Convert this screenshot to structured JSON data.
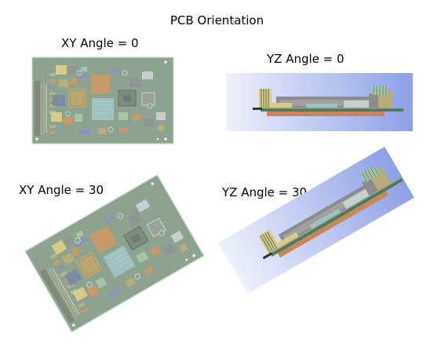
{
  "figure": {
    "title": "PCB Orientation"
  },
  "panels": [
    {
      "id": "xy0",
      "label": "XY Angle = 0"
    },
    {
      "id": "yz0",
      "label": "YZ Angle = 0"
    },
    {
      "id": "xy30",
      "label": "XY Angle = 30"
    },
    {
      "id": "yz30",
      "label": "YZ Angle = 30"
    }
  ],
  "colors": {
    "board": "#8ea38f",
    "board_edge": "#c9d7cc",
    "pad_tan": "#b8ad7a",
    "pad_orange": "#c79a6a",
    "pad_blue": "#8e93b8",
    "pad_gray": "#8f9494",
    "pad_light": "#c8d0cf",
    "pad_teal": "#9fc2c0",
    "bg_gradient_start": "#eef1fb",
    "bg_gradient_end": "#8ea0e6",
    "copper_bottom": "#c6875b",
    "side_gray": "#8c8c8c"
  }
}
